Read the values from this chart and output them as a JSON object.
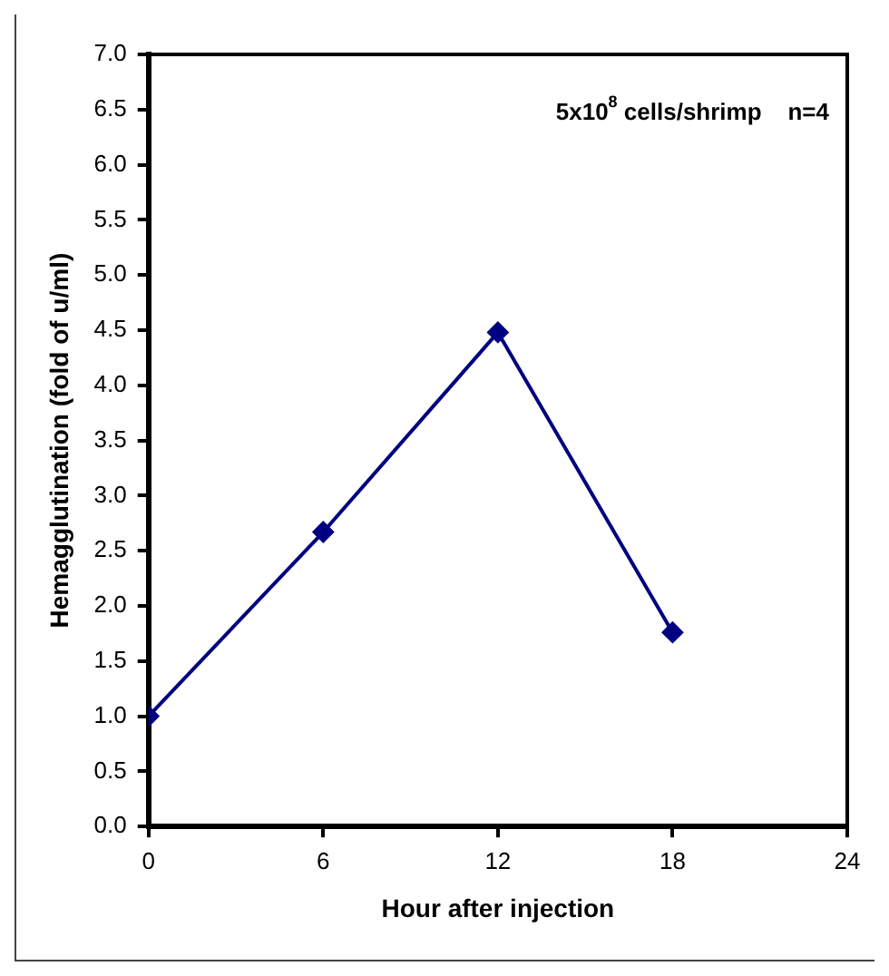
{
  "chart_data": {
    "type": "line",
    "xlabel": "Hour after injection",
    "ylabel": "Hemagglutination (fold of u/ml)",
    "annotations": [
      "5x10$^{8}$ cells/shrimp    n=4"
    ],
    "x": [
      0,
      6,
      12,
      18
    ],
    "series": [
      {
        "color": "#000080",
        "values": [
          1.0,
          2.67,
          4.48,
          1.76
        ]
      }
    ],
    "xlim": [
      0,
      24
    ],
    "xticks": [
      0,
      6,
      12,
      18,
      24
    ],
    "ylim": [
      0,
      7
    ],
    "yticks": [
      {
        "value": 0,
        "label": "0.0"
      },
      {
        "value": 0.5,
        "label": "0.5"
      },
      {
        "value": 1,
        "label": "1.0"
      },
      {
        "value": 1.5,
        "label": "1.5"
      },
      {
        "value": 2,
        "label": "2.0"
      },
      {
        "value": 2.5,
        "label": "2.5"
      },
      {
        "value": 3,
        "label": "3.0"
      },
      {
        "value": 3.5,
        "label": "3.5"
      },
      {
        "value": 4,
        "label": "4.0"
      },
      {
        "value": 4.5,
        "label": "4.5"
      },
      {
        "value": 5,
        "label": "5.0"
      },
      {
        "value": 5.5,
        "label": "5.5"
      },
      {
        "value": 6,
        "label": "6.0"
      },
      {
        "value": 6.5,
        "label": "6.5"
      },
      {
        "value": 7,
        "label": "7.0"
      }
    ],
    "grid": false,
    "legend": false,
    "marker": "diamond",
    "line_style": "solid"
  }
}
